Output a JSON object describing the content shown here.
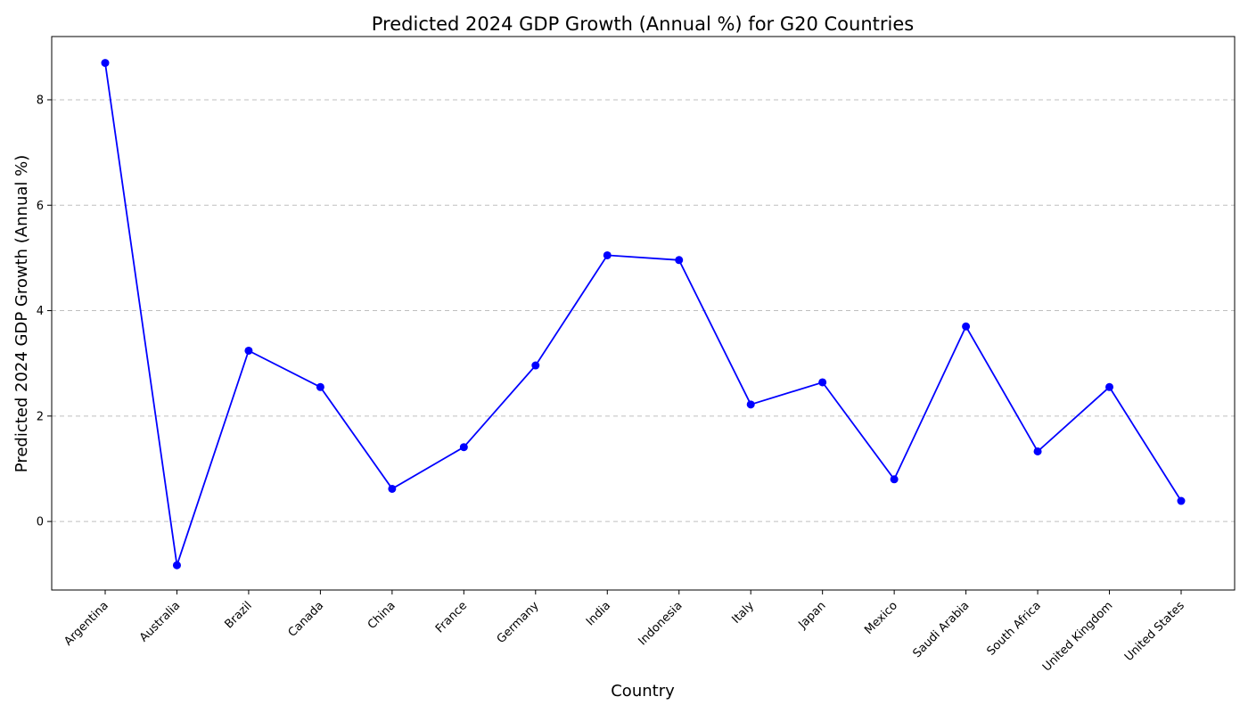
{
  "chart_data": {
    "type": "line",
    "title": "Predicted 2024 GDP Growth (Annual %) for G20 Countries",
    "xlabel": "Country",
    "ylabel": "Predicted 2024 GDP Growth (Annual %)",
    "categories": [
      "Argentina",
      "Australia",
      "Brazil",
      "Canada",
      "China",
      "France",
      "Germany",
      "India",
      "Indonesia",
      "Italy",
      "Japan",
      "Mexico",
      "Saudi Arabia",
      "South Africa",
      "United Kingdom",
      "United States"
    ],
    "series": [
      {
        "values": [
          8.7,
          -0.83,
          3.24,
          2.55,
          0.62,
          1.41,
          2.96,
          5.05,
          4.96,
          2.22,
          2.64,
          0.8,
          3.7,
          1.33,
          2.55,
          0.39
        ],
        "color": "#0000ff"
      }
    ],
    "ylim": [
      -1.3,
      9.2
    ],
    "yticks": [
      0,
      2,
      4,
      6,
      8
    ],
    "grid": "y-dashed",
    "legend": "none"
  }
}
